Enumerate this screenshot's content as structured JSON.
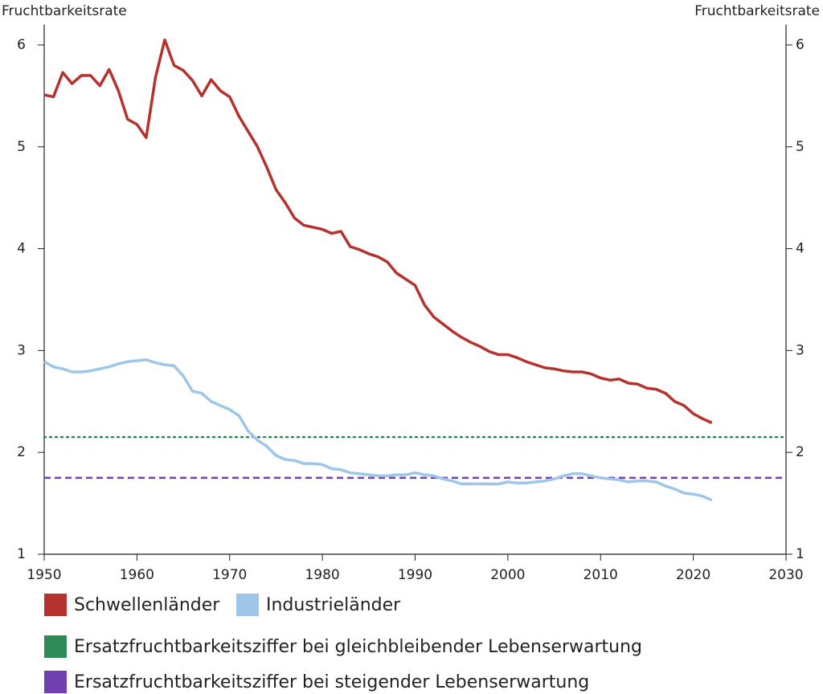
{
  "chart_data": {
    "type": "line",
    "ylabel": "Fruchtbarkeitsrate",
    "y2label": "Fruchtbarkeitsrate",
    "x": [
      1950,
      1951,
      1952,
      1953,
      1954,
      1955,
      1956,
      1957,
      1958,
      1959,
      1960,
      1961,
      1962,
      1963,
      1964,
      1965,
      1966,
      1967,
      1968,
      1969,
      1970,
      1971,
      1972,
      1973,
      1974,
      1975,
      1976,
      1977,
      1978,
      1979,
      1980,
      1981,
      1982,
      1983,
      1984,
      1985,
      1986,
      1987,
      1988,
      1989,
      1990,
      1991,
      1992,
      1993,
      1994,
      1995,
      1996,
      1997,
      1998,
      1999,
      2000,
      2001,
      2002,
      2003,
      2004,
      2005,
      2006,
      2007,
      2008,
      2009,
      2010,
      2011,
      2012,
      2013,
      2014,
      2015,
      2016,
      2017,
      2018,
      2019,
      2020,
      2021,
      2022
    ],
    "series": [
      {
        "name": "Schwellenländer",
        "color": "#b5322f",
        "values": [
          5.51,
          5.49,
          5.73,
          5.62,
          5.7,
          5.7,
          5.6,
          5.76,
          5.55,
          5.27,
          5.22,
          5.09,
          5.68,
          6.05,
          5.8,
          5.75,
          5.65,
          5.5,
          5.66,
          5.55,
          5.49,
          5.3,
          5.15,
          5.0,
          4.8,
          4.58,
          4.45,
          4.3,
          4.23,
          4.21,
          4.19,
          4.15,
          4.17,
          4.02,
          3.99,
          3.95,
          3.92,
          3.87,
          3.76,
          3.7,
          3.64,
          3.45,
          3.33,
          3.26,
          3.19,
          3.13,
          3.08,
          3.04,
          2.99,
          2.96,
          2.96,
          2.93,
          2.89,
          2.86,
          2.83,
          2.82,
          2.8,
          2.79,
          2.79,
          2.77,
          2.73,
          2.71,
          2.72,
          2.68,
          2.67,
          2.63,
          2.62,
          2.58,
          2.5,
          2.46,
          2.38,
          2.33,
          2.29
        ]
      },
      {
        "name": "Industrieländer",
        "color": "#9dc6e8",
        "values": [
          2.89,
          2.84,
          2.82,
          2.79,
          2.79,
          2.8,
          2.82,
          2.84,
          2.87,
          2.89,
          2.9,
          2.91,
          2.88,
          2.86,
          2.85,
          2.75,
          2.6,
          2.58,
          2.5,
          2.46,
          2.42,
          2.36,
          2.21,
          2.12,
          2.06,
          1.97,
          1.93,
          1.92,
          1.89,
          1.89,
          1.88,
          1.84,
          1.83,
          1.8,
          1.79,
          1.78,
          1.77,
          1.77,
          1.78,
          1.78,
          1.8,
          1.78,
          1.77,
          1.74,
          1.72,
          1.69,
          1.69,
          1.69,
          1.69,
          1.69,
          1.71,
          1.7,
          1.7,
          1.71,
          1.72,
          1.74,
          1.77,
          1.79,
          1.79,
          1.77,
          1.75,
          1.74,
          1.73,
          1.71,
          1.72,
          1.72,
          1.71,
          1.67,
          1.64,
          1.6,
          1.59,
          1.57,
          1.53
        ]
      }
    ],
    "reference_lines": [
      {
        "name": "Ersatzfruchtbarkeitsziffer bei gleichbleibender Lebenserwartung",
        "color": "#2e8b57",
        "style": "dotted",
        "value": 2.15
      },
      {
        "name": "Ersatzfruchtbarkeitsziffer bei steigender Lebenserwartung",
        "color": "#7040b0",
        "style": "dashed",
        "value": 1.75
      }
    ],
    "xlim": [
      1950,
      2030
    ],
    "xticks": [
      1950,
      1960,
      1970,
      1980,
      1990,
      2000,
      2010,
      2020,
      2030
    ],
    "ylim": [
      1,
      6.2
    ],
    "yticks": [
      1,
      2,
      3,
      4,
      5,
      6
    ],
    "y2lim": [
      1,
      6.2
    ],
    "y2ticks": [
      1,
      2,
      3,
      4,
      5,
      6
    ],
    "grid": false
  }
}
